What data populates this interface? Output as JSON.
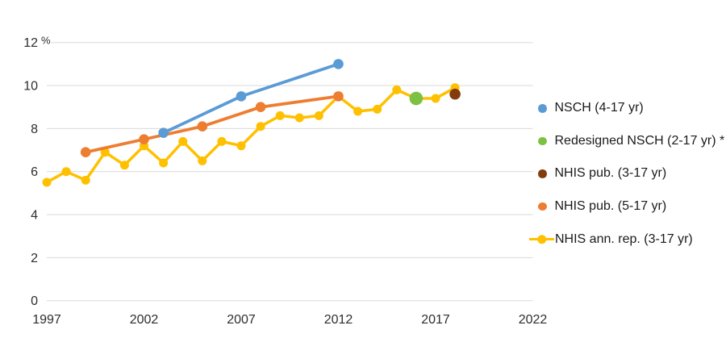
{
  "chart_data": {
    "type": "line",
    "title": "",
    "xlabel": "",
    "ylabel": "",
    "unit": "%",
    "grid": true,
    "legend_position": "right",
    "x_axis": {
      "ticks": [
        "1997",
        "2002",
        "2007",
        "2012",
        "2017",
        "2022"
      ],
      "range": [
        1997,
        2022
      ]
    },
    "y_axis": {
      "ticks": [
        "0",
        "2",
        "4",
        "6",
        "8",
        "10",
        "12"
      ],
      "unit": "%",
      "range": [
        0,
        12
      ]
    },
    "series": [
      {
        "id": "nsch",
        "name": "NSCH (4-17 yr)",
        "color": "#5B9BD5",
        "style": "line+markers",
        "points": [
          [
            2003,
            7.8
          ],
          [
            2007,
            9.5
          ],
          [
            2012,
            11.0
          ]
        ]
      },
      {
        "id": "redesigned-nsch",
        "name": "Redesigned NSCH (2-17 yr) *",
        "color": "#7DC142",
        "style": "markers",
        "points": [
          [
            2016,
            9.4
          ]
        ]
      },
      {
        "id": "nhis-pub-3-17",
        "name": "NHIS pub. (3-17 yr)",
        "color": "#843C0C",
        "style": "markers",
        "points": [
          [
            2018,
            9.6
          ]
        ]
      },
      {
        "id": "nhis-pub-5-17",
        "name": "NHIS pub. (5-17 yr)",
        "color": "#ED7D31",
        "style": "line+markers",
        "points": [
          [
            1999,
            6.9
          ],
          [
            2002,
            7.5
          ],
          [
            2005,
            8.1
          ],
          [
            2008,
            9.0
          ],
          [
            2012,
            9.5
          ]
        ]
      },
      {
        "id": "nhis-ann-rep",
        "name": "NHIS ann. rep. (3-17 yr)",
        "color": "#FFC000",
        "style": "line+markers",
        "points": [
          [
            1997,
            5.5
          ],
          [
            1998,
            6.0
          ],
          [
            1999,
            5.6
          ],
          [
            2000,
            6.9
          ],
          [
            2001,
            6.3
          ],
          [
            2002,
            7.2
          ],
          [
            2003,
            6.4
          ],
          [
            2004,
            7.4
          ],
          [
            2005,
            6.5
          ],
          [
            2006,
            7.4
          ],
          [
            2007,
            7.2
          ],
          [
            2008,
            8.1
          ],
          [
            2009,
            8.6
          ],
          [
            2010,
            8.5
          ],
          [
            2011,
            8.6
          ],
          [
            2012,
            9.5
          ],
          [
            2013,
            8.8
          ],
          [
            2014,
            8.9
          ],
          [
            2015,
            9.8
          ],
          [
            2016,
            9.4
          ],
          [
            2017,
            9.4
          ],
          [
            2018,
            9.9
          ]
        ]
      }
    ]
  }
}
